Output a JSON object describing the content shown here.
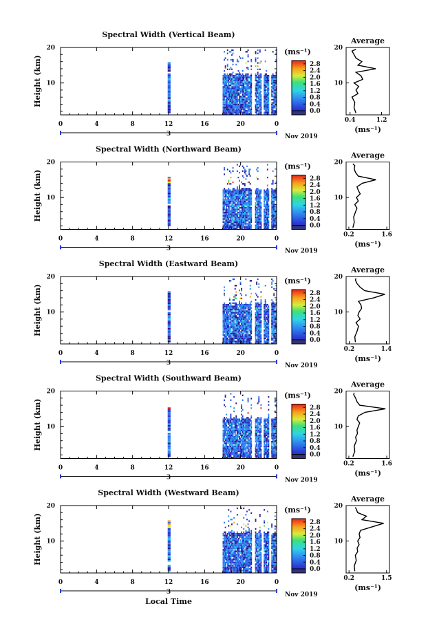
{
  "figure": {
    "xlabel": "Local Time",
    "date_label": "Nov 2019",
    "day_label": "3",
    "x_ticks": [
      "0",
      "4",
      "8",
      "12",
      "16",
      "20",
      "0"
    ],
    "ylabel": "Height (km)",
    "y_ticks": [
      "20",
      "10"
    ],
    "unit_label": "(ms⁻¹)",
    "colorbar_ticks": [
      "2.8",
      "2.4",
      "2.0",
      "1.6",
      "1.2",
      "0.8",
      "0.4",
      "0.0"
    ],
    "average_title": "Average",
    "average_xlabel": "(ms⁻¹)",
    "average_y_ticks": [
      "20",
      "10"
    ]
  },
  "chart_data": [
    {
      "type": "heatmap",
      "title": "Spectral Width (Vertical Beam)",
      "xlabel": "Local Time",
      "ylabel": "Height (km)",
      "xlim": [
        0,
        24
      ],
      "ylim": [
        1,
        20
      ],
      "colorbar": {
        "label": "(ms⁻¹)",
        "range": [
          0.0,
          3.0
        ]
      },
      "data_columns_hours": [
        [
          11.9,
          12.2
        ],
        [
          18.0,
          24.0
        ]
      ],
      "average_profile": {
        "title": "Average",
        "xlabel": "(ms⁻¹)",
        "x_ticks": [
          "0.4",
          "1.2"
        ],
        "xlim": [
          0.3,
          1.4
        ],
        "height_km": [
          1.5,
          3,
          4.5,
          6,
          7,
          8,
          9,
          10,
          11,
          12,
          13,
          14,
          15,
          16,
          17,
          18,
          19,
          19.5
        ],
        "width_ms": [
          0.55,
          0.5,
          0.52,
          0.45,
          0.6,
          0.55,
          0.62,
          0.5,
          0.72,
          0.68,
          0.55,
          1.05,
          0.6,
          0.7,
          0.55,
          0.5,
          0.45,
          0.55
        ]
      }
    },
    {
      "type": "heatmap",
      "title": "Spectral Width (Northward Beam)",
      "xlabel": "Local Time",
      "ylabel": "Height (km)",
      "xlim": [
        0,
        24
      ],
      "ylim": [
        1,
        20
      ],
      "colorbar": {
        "label": "(ms⁻¹)",
        "range": [
          0.0,
          3.0
        ]
      },
      "data_columns_hours": [
        [
          11.9,
          12.2
        ],
        [
          18.0,
          24.0
        ]
      ],
      "average_profile": {
        "title": "Average",
        "xlabel": "(ms⁻¹)",
        "x_ticks": [
          "0.2",
          "1.6"
        ],
        "xlim": [
          0.1,
          1.7
        ],
        "height_km": [
          1.5,
          3,
          4.5,
          6,
          7,
          8,
          9,
          10,
          11,
          12,
          13,
          14,
          15,
          16,
          17,
          18,
          19,
          19.5
        ],
        "width_ms": [
          0.35,
          0.4,
          0.38,
          0.45,
          0.5,
          0.42,
          0.55,
          0.48,
          0.62,
          0.55,
          0.5,
          0.7,
          1.2,
          0.55,
          0.45,
          0.4,
          0.42,
          0.35
        ]
      }
    },
    {
      "type": "heatmap",
      "title": "Spectral Width (Eastward Beam)",
      "xlabel": "Local Time",
      "ylabel": "Height (km)",
      "xlim": [
        0,
        24
      ],
      "ylim": [
        1,
        20
      ],
      "colorbar": {
        "label": "(ms⁻¹)",
        "range": [
          0.0,
          3.0
        ]
      },
      "data_columns_hours": [
        [
          11.9,
          12.2
        ],
        [
          18.0,
          24.0
        ]
      ],
      "average_profile": {
        "title": "Average",
        "xlabel": "(ms⁻¹)",
        "x_ticks": [
          "0.2",
          "1.4"
        ],
        "xlim": [
          0.1,
          1.5
        ],
        "height_km": [
          1.5,
          3,
          4.5,
          6,
          7,
          8,
          9,
          10,
          11,
          12,
          13,
          14,
          15,
          16,
          17,
          18,
          19,
          19.5
        ],
        "width_ms": [
          0.4,
          0.38,
          0.45,
          0.5,
          0.42,
          0.55,
          0.48,
          0.52,
          0.6,
          0.58,
          0.5,
          1.0,
          1.35,
          0.7,
          0.55,
          0.45,
          0.4,
          0.42
        ]
      }
    },
    {
      "type": "heatmap",
      "title": "Spectral Width (Southward Beam)",
      "xlabel": "Local Time",
      "ylabel": "Height (km)",
      "xlim": [
        0,
        24
      ],
      "ylim": [
        1,
        20
      ],
      "colorbar": {
        "label": "(ms⁻¹)",
        "range": [
          0.0,
          3.0
        ]
      },
      "data_columns_hours": [
        [
          11.9,
          12.2
        ],
        [
          18.0,
          24.0
        ]
      ],
      "average_profile": {
        "title": "Average",
        "xlabel": "(ms⁻¹)",
        "x_ticks": [
          "0.2",
          "1.6"
        ],
        "xlim": [
          0.1,
          1.7
        ],
        "height_km": [
          1.5,
          3,
          4.5,
          6,
          7,
          8,
          9,
          10,
          11,
          12,
          13,
          14,
          15,
          16,
          17,
          18,
          19,
          19.5
        ],
        "width_ms": [
          0.35,
          0.42,
          0.4,
          0.48,
          0.45,
          0.52,
          0.5,
          0.55,
          0.6,
          0.5,
          0.55,
          0.8,
          1.55,
          0.6,
          0.5,
          0.45,
          0.38,
          0.4
        ]
      }
    },
    {
      "type": "heatmap",
      "title": "Spectral Width (Westward Beam)",
      "xlabel": "Local Time",
      "ylabel": "Height (km)",
      "xlim": [
        0,
        24
      ],
      "ylim": [
        1,
        20
      ],
      "colorbar": {
        "label": "(ms⁻¹)",
        "range": [
          0.0,
          3.0
        ]
      },
      "data_columns_hours": [
        [
          11.9,
          12.2
        ],
        [
          18.0,
          24.0
        ]
      ],
      "average_profile": {
        "title": "Average",
        "xlabel": "(ms⁻¹)",
        "x_ticks": [
          "0.2",
          "1.5"
        ],
        "xlim": [
          0.1,
          1.6
        ],
        "height_km": [
          1.5,
          3,
          4.5,
          6,
          7,
          8,
          9,
          10,
          11,
          12,
          13,
          14,
          15,
          16,
          17,
          18,
          19,
          19.5
        ],
        "width_ms": [
          0.4,
          0.38,
          0.45,
          0.42,
          0.5,
          0.48,
          0.55,
          0.5,
          0.58,
          0.55,
          0.6,
          1.0,
          1.4,
          0.65,
          0.8,
          0.5,
          0.45,
          0.42
        ]
      }
    }
  ]
}
